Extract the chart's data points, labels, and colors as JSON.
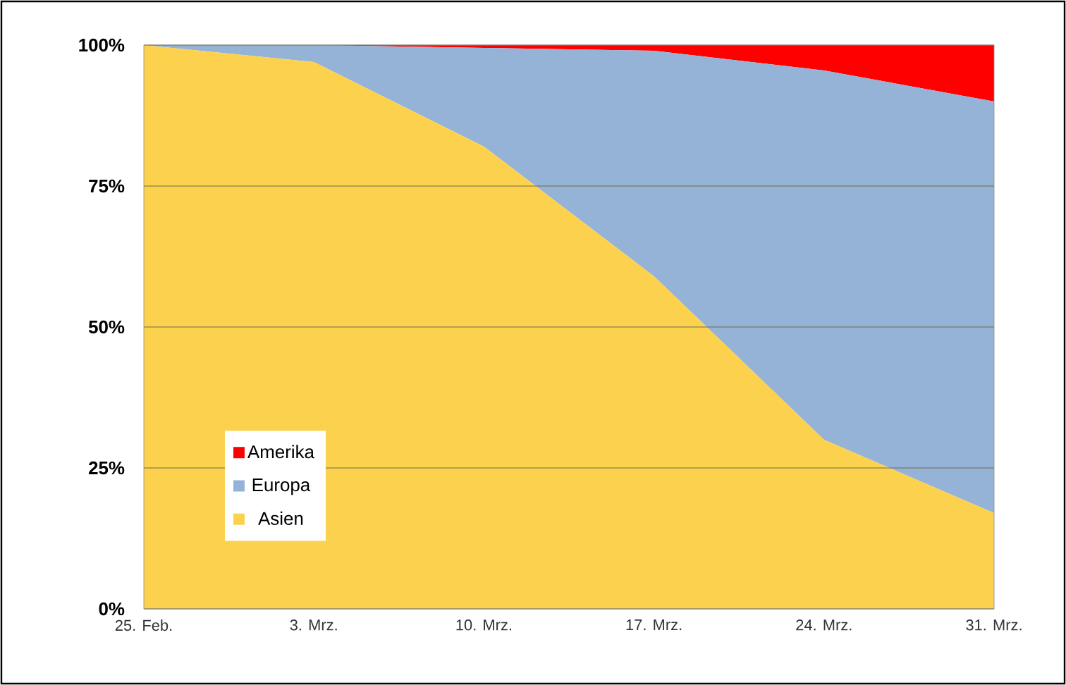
{
  "chart_data": {
    "type": "area",
    "stacked": true,
    "categories": [
      "25. Feb.",
      "3. Mrz.",
      "10. Mrz.",
      "17. Mrz.",
      "24. Mrz.",
      "31. Mrz."
    ],
    "series": [
      {
        "name": "Asien",
        "color": "#fcd14e",
        "values": [
          100,
          97,
          82,
          59,
          30,
          17
        ]
      },
      {
        "name": "Europa",
        "color": "#95b3d7",
        "values": [
          0,
          3,
          17.5,
          40,
          65.5,
          73
        ]
      },
      {
        "name": "Amerika",
        "color": "#ff0000",
        "values": [
          0,
          0,
          0.5,
          1,
          4.5,
          10
        ]
      }
    ],
    "ylim": [
      0,
      100
    ],
    "yticks": [
      {
        "value": 0,
        "label": "0%"
      },
      {
        "value": 25,
        "label": "25%"
      },
      {
        "value": 50,
        "label": "50%"
      },
      {
        "value": 75,
        "label": "75%"
      },
      {
        "value": 100,
        "label": "100%"
      }
    ],
    "grid": "y",
    "legend": "bottom left"
  }
}
